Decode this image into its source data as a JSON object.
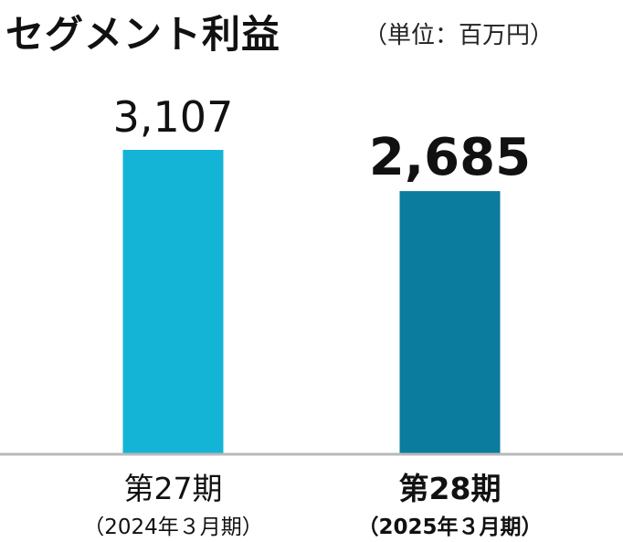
{
  "header": {
    "title": "セグメント利益",
    "unit": "（単位：百万円）"
  },
  "chart_data": {
    "type": "bar",
    "title": "セグメント利益",
    "unit": "（単位：百万円）",
    "categories": [
      "第27期",
      "第28期"
    ],
    "subcategories": [
      "（2024年３月期）",
      "（2025年３月期）"
    ],
    "values": [
      3107,
      2685
    ],
    "value_labels": [
      "3,107",
      "2,685"
    ],
    "highlight_index": 1,
    "colors": [
      "#14b4d6",
      "#0b7b9e"
    ],
    "axis_color": "#b9b9b9",
    "ylim": [
      0,
      3107
    ],
    "grid": false,
    "legend": "none"
  }
}
